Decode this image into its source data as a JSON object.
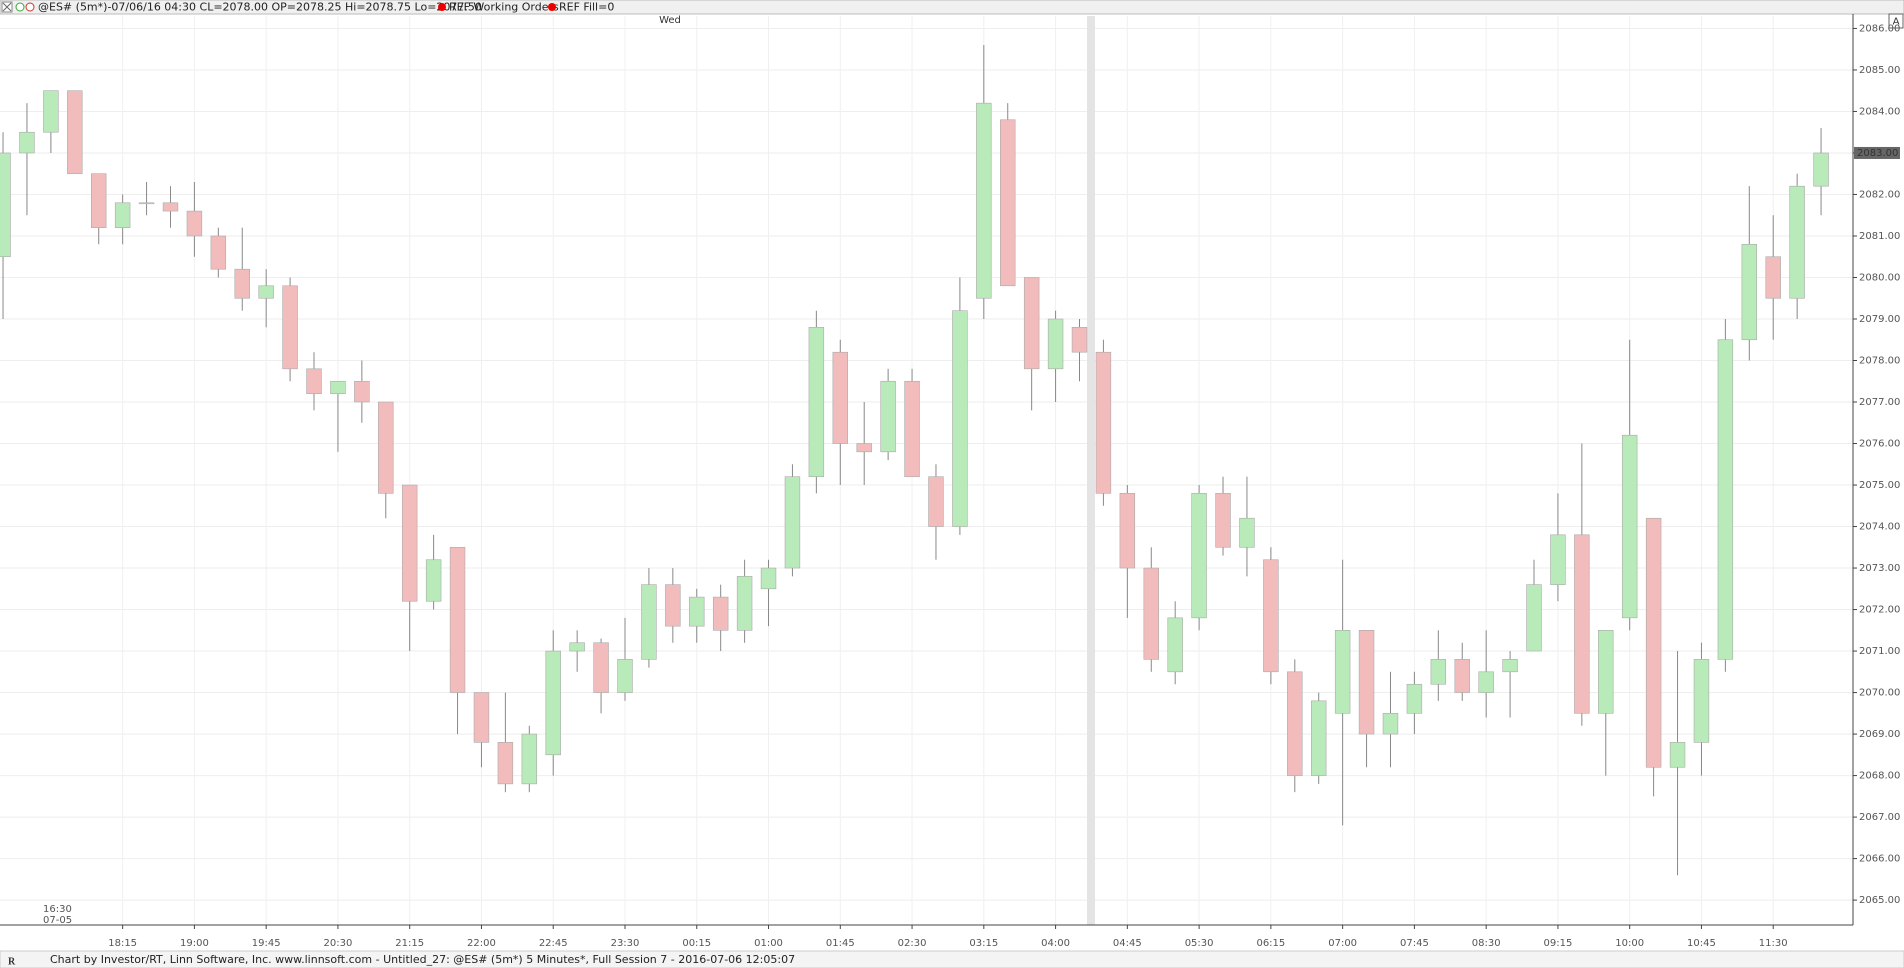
{
  "header": {
    "symbol_info": "@ES# (5m*)-07/06/16 04:30 CL=2078.00 OP=2078.25 Hi=2078.75 Lo=2077.50",
    "working_orders": "REF Working Orders",
    "fill": "REF Fill=0",
    "corner_button": "A"
  },
  "footer": {
    "status": "Chart by Investor/RT, Linn Software, Inc. www.linnsoft.com - Untitled_27: @ES# (5m*) 5 Minutes*, Full Session 7 - 2016-07-06 12:05:07"
  },
  "chart_data": {
    "type": "candlestick",
    "day_label": "Wed",
    "start_time": "16:30",
    "start_date": "07-05",
    "categories": [
      null,
      null,
      null,
      null,
      null,
      "18:15",
      null,
      null,
      "19:00",
      null,
      null,
      "19:45",
      null,
      null,
      "20:30",
      null,
      null,
      "21:15",
      null,
      null,
      "22:00",
      null,
      null,
      "22:45",
      null,
      null,
      "23:30",
      null,
      null,
      "00:15",
      null,
      null,
      "01:00",
      null,
      null,
      "01:45",
      null,
      null,
      "02:30",
      null,
      null,
      "03:15",
      null,
      null,
      "04:00",
      null,
      null,
      "04:45",
      null,
      null,
      "05:30",
      null,
      null,
      "06:15",
      null,
      null,
      "07:00",
      null,
      null,
      "07:45",
      null,
      null,
      "08:30",
      null,
      null,
      "09:15",
      null,
      null,
      "10:00",
      null,
      null,
      "10:45",
      null,
      null,
      "11:30",
      null,
      null
    ],
    "open": [
      2080.5,
      2083.0,
      2083.5,
      2084.5,
      2082.5,
      2081.2,
      2081.8,
      2081.8,
      2081.6,
      2081.0,
      2080.2,
      2079.5,
      2079.8,
      2077.8,
      2077.2,
      2077.5,
      2077.0,
      2075.0,
      2072.2,
      2073.5,
      2070.0,
      2068.8,
      2067.8,
      2068.5,
      2071.0,
      2071.2,
      2070.0,
      2070.8,
      2072.6,
      2071.6,
      2072.3,
      2071.5,
      2072.5,
      2073.0,
      2075.2,
      2078.2,
      2076.0,
      2075.8,
      2077.5,
      2075.2,
      2074.0,
      2079.5,
      2083.8,
      2080.0,
      2077.8,
      2078.8,
      2078.2,
      2074.8,
      2073.0,
      2070.5,
      2071.8,
      2074.8,
      2073.5,
      2073.2,
      2070.5,
      2068.0,
      2069.5,
      2071.5,
      2069.0,
      2069.5,
      2070.2,
      2070.8,
      2070.0,
      2070.5,
      2071.0,
      2072.6,
      2073.8,
      2069.5,
      2071.8,
      2074.2,
      2068.2,
      2068.8,
      2070.8,
      2078.5,
      2080.5,
      2079.5,
      2082.2
    ],
    "high": [
      2083.5,
      2084.2,
      2084.5,
      2084.5,
      2082.5,
      2082.0,
      2082.3,
      2082.2,
      2082.3,
      2081.2,
      2081.2,
      2080.2,
      2080.0,
      2078.2,
      2077.5,
      2078.0,
      2077.0,
      2075.0,
      2073.8,
      2073.5,
      2070.0,
      2070.0,
      2069.2,
      2071.5,
      2071.5,
      2071.3,
      2071.8,
      2073.0,
      2073.0,
      2072.5,
      2072.6,
      2073.2,
      2073.2,
      2075.5,
      2079.2,
      2078.5,
      2077.0,
      2077.8,
      2077.8,
      2075.5,
      2080.0,
      2085.6,
      2084.2,
      2080.0,
      2079.2,
      2079.0,
      2078.5,
      2075.0,
      2073.5,
      2072.2,
      2075.0,
      2075.2,
      2075.2,
      2073.5,
      2070.8,
      2070.0,
      2073.2,
      2071.5,
      2070.5,
      2070.5,
      2071.5,
      2071.2,
      2071.5,
      2071.0,
      2073.2,
      2074.8,
      2076.0,
      2071.5,
      2078.5,
      2074.2,
      2071.0,
      2071.2,
      2079.0,
      2082.2,
      2081.5,
      2082.5,
      2083.6
    ],
    "low": [
      2079.0,
      2081.5,
      2083.0,
      2082.5,
      2080.8,
      2080.8,
      2081.5,
      2081.2,
      2080.5,
      2080.0,
      2079.2,
      2078.8,
      2077.5,
      2076.8,
      2075.8,
      2076.5,
      2074.2,
      2071.0,
      2072.0,
      2069.0,
      2068.2,
      2067.6,
      2067.6,
      2068.0,
      2070.5,
      2069.5,
      2069.8,
      2070.6,
      2071.2,
      2071.2,
      2071.0,
      2071.2,
      2071.6,
      2072.8,
      2074.8,
      2075.0,
      2075.0,
      2075.6,
      2075.2,
      2073.2,
      2073.8,
      2079.0,
      2079.8,
      2076.8,
      2077.0,
      2077.5,
      2074.5,
      2071.8,
      2070.5,
      2070.2,
      2071.5,
      2073.3,
      2072.8,
      2070.2,
      2067.6,
      2067.8,
      2066.8,
      2068.2,
      2068.2,
      2069.0,
      2069.8,
      2069.8,
      2069.4,
      2069.4,
      2071.0,
      2072.2,
      2069.2,
      2068.0,
      2071.5,
      2067.5,
      2065.6,
      2068.0,
      2070.5,
      2078.0,
      2078.5,
      2079.0,
      2081.5
    ],
    "close": [
      2083.0,
      2083.5,
      2084.5,
      2082.5,
      2081.2,
      2081.8,
      2081.8,
      2081.6,
      2081.0,
      2080.2,
      2079.5,
      2079.8,
      2077.8,
      2077.2,
      2077.5,
      2077.0,
      2074.8,
      2072.2,
      2073.2,
      2070.0,
      2068.8,
      2067.8,
      2069.0,
      2071.0,
      2071.2,
      2070.0,
      2070.8,
      2072.6,
      2071.6,
      2072.3,
      2071.5,
      2072.8,
      2073.0,
      2075.2,
      2078.8,
      2076.0,
      2075.8,
      2077.5,
      2075.2,
      2074.0,
      2079.2,
      2084.2,
      2079.8,
      2077.8,
      2079.0,
      2078.2,
      2074.8,
      2073.0,
      2070.8,
      2071.8,
      2074.8,
      2073.5,
      2074.2,
      2070.5,
      2068.0,
      2069.8,
      2071.5,
      2069.0,
      2069.5,
      2070.2,
      2070.8,
      2070.0,
      2070.5,
      2070.8,
      2072.6,
      2073.8,
      2069.5,
      2071.5,
      2076.2,
      2068.2,
      2068.8,
      2070.8,
      2078.5,
      2080.8,
      2079.5,
      2082.2,
      2083.0
    ],
    "up_color": "#b9eab9",
    "down_color": "#f2bcbc",
    "last_price": {
      "value": 2083,
      "label": "2083.00"
    },
    "ylim": [
      2064.4,
      2086.3
    ],
    "yticks": [
      {
        "value": 2065,
        "label": "2065.00"
      },
      {
        "value": 2066,
        "label": "2066.00"
      },
      {
        "value": 2067,
        "label": "2067.00"
      },
      {
        "value": 2068,
        "label": "2068.00"
      },
      {
        "value": 2069,
        "label": "2069.00"
      },
      {
        "value": 2070,
        "label": "2070.00"
      },
      {
        "value": 2071,
        "label": "2071.00"
      },
      {
        "value": 2072,
        "label": "2072.00"
      },
      {
        "value": 2073,
        "label": "2073.00"
      },
      {
        "value": 2074,
        "label": "2074.00"
      },
      {
        "value": 2075,
        "label": "2075.00"
      },
      {
        "value": 2076,
        "label": "2076.00"
      },
      {
        "value": 2077,
        "label": "2077.00"
      },
      {
        "value": 2078,
        "label": "2078.00"
      },
      {
        "value": 2079,
        "label": "2079.00"
      },
      {
        "value": 2080,
        "label": "2080.00"
      },
      {
        "value": 2081,
        "label": "2081.00"
      },
      {
        "value": 2082,
        "label": "2082.00"
      },
      {
        "value": 2083,
        "label": "2083.00"
      },
      {
        "value": 2084,
        "label": "2084.00"
      },
      {
        "value": 2085,
        "label": "2085.00"
      },
      {
        "value": 2086,
        "label": "2086.00"
      }
    ],
    "grid": true
  }
}
